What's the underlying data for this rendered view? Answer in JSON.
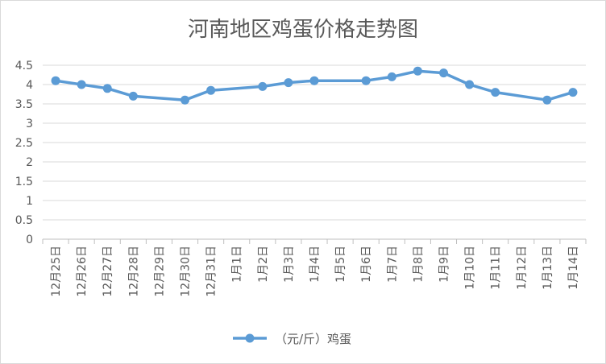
{
  "chart_data": {
    "type": "line",
    "title": "河南地区鸡蛋价格走势图",
    "xlabel": "",
    "ylabel": "",
    "categories": [
      "12月25日",
      "12月26日",
      "12月27日",
      "12月28日",
      "12月29日",
      "12月30日",
      "12月31日",
      "1月1日",
      "1月2日",
      "1月3日",
      "1月4日",
      "1月5日",
      "1月6日",
      "1月7日",
      "1月8日",
      "1月9日",
      "1月10日",
      "1月11日",
      "1月12日",
      "1月13日",
      "1月14日"
    ],
    "ylim": [
      0,
      4.5
    ],
    "yticks": [
      "0",
      "0.5",
      "1",
      "1.5",
      "2",
      "2.5",
      "3",
      "3.5",
      "4",
      "4.5"
    ],
    "series": [
      {
        "name": "（元/斤）鸡蛋",
        "color": "#5b9bd5",
        "values": [
          4.1,
          4.0,
          3.9,
          3.7,
          null,
          3.6,
          3.85,
          null,
          3.95,
          4.05,
          4.1,
          null,
          4.1,
          4.2,
          4.35,
          4.3,
          4.0,
          3.8,
          null,
          3.6,
          3.8
        ]
      }
    ],
    "grid": true,
    "legend_position": "bottom"
  }
}
